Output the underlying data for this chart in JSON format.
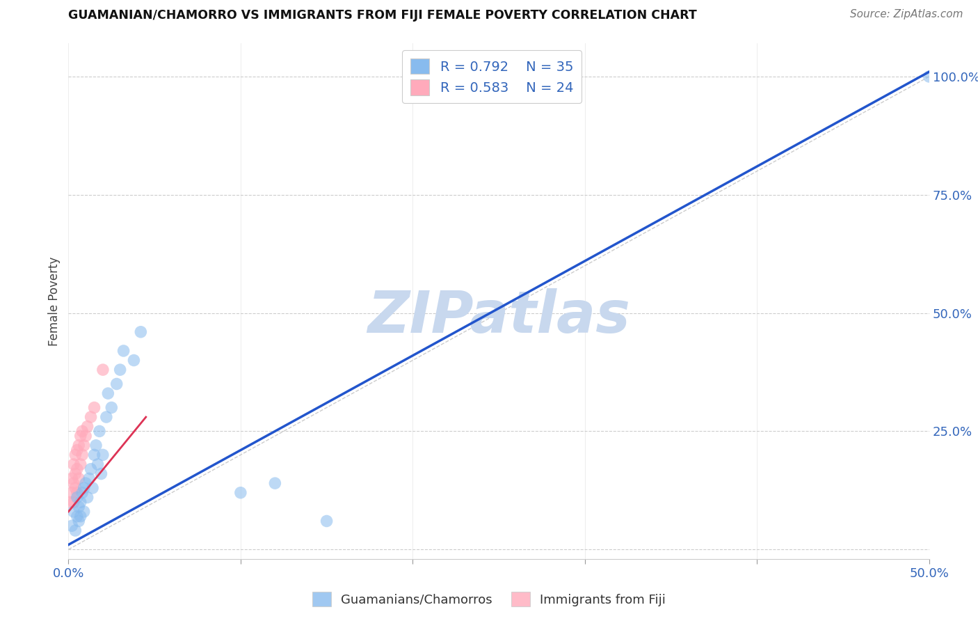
{
  "title": "GUAMANIAN/CHAMORRO VS IMMIGRANTS FROM FIJI FEMALE POVERTY CORRELATION CHART",
  "source": "Source: ZipAtlas.com",
  "ylabel_label": "Female Poverty",
  "xlim": [
    0.0,
    0.5
  ],
  "ylim": [
    -0.02,
    1.07
  ],
  "background_color": "#ffffff",
  "grid_color": "#cccccc",
  "blue_color": "#88bbee",
  "pink_color": "#ffaabb",
  "blue_line_color": "#2255cc",
  "pink_line_color": "#dd3355",
  "diagonal_color": "#cccccc",
  "legend_R1": "R = 0.792",
  "legend_N1": "N = 35",
  "legend_R2": "R = 0.583",
  "legend_N2": "N = 24",
  "watermark": "ZIPatlas",
  "watermark_color": "#c8d8ee",
  "blue_line_x0": 0.0,
  "blue_line_y0": 0.01,
  "blue_line_x1": 0.5,
  "blue_line_y1": 1.01,
  "pink_line_x0": 0.0,
  "pink_line_y0": 0.08,
  "pink_line_x1": 0.045,
  "pink_line_y1": 0.28,
  "blue_scatter_x": [
    0.002,
    0.003,
    0.004,
    0.005,
    0.005,
    0.006,
    0.006,
    0.007,
    0.007,
    0.008,
    0.009,
    0.009,
    0.01,
    0.011,
    0.012,
    0.013,
    0.014,
    0.015,
    0.016,
    0.017,
    0.018,
    0.019,
    0.02,
    0.022,
    0.023,
    0.025,
    0.028,
    0.03,
    0.032,
    0.038,
    0.042,
    0.1,
    0.12,
    0.15,
    0.5
  ],
  "blue_scatter_y": [
    0.05,
    0.08,
    0.04,
    0.07,
    0.11,
    0.09,
    0.06,
    0.1,
    0.07,
    0.12,
    0.08,
    0.13,
    0.14,
    0.11,
    0.15,
    0.17,
    0.13,
    0.2,
    0.22,
    0.18,
    0.25,
    0.16,
    0.2,
    0.28,
    0.33,
    0.3,
    0.35,
    0.38,
    0.42,
    0.4,
    0.46,
    0.12,
    0.14,
    0.06,
    1.0
  ],
  "pink_scatter_x": [
    0.001,
    0.002,
    0.002,
    0.003,
    0.003,
    0.003,
    0.004,
    0.004,
    0.004,
    0.005,
    0.005,
    0.005,
    0.006,
    0.006,
    0.007,
    0.007,
    0.008,
    0.008,
    0.009,
    0.01,
    0.011,
    0.013,
    0.015,
    0.02
  ],
  "pink_scatter_y": [
    0.1,
    0.12,
    0.15,
    0.1,
    0.14,
    0.18,
    0.13,
    0.16,
    0.2,
    0.12,
    0.17,
    0.21,
    0.15,
    0.22,
    0.18,
    0.24,
    0.2,
    0.25,
    0.22,
    0.24,
    0.26,
    0.28,
    0.3,
    0.38
  ],
  "xtick_positions": [
    0.0,
    0.1,
    0.2,
    0.3,
    0.4,
    0.5
  ],
  "xtick_labels": [
    "0.0%",
    "",
    "",
    "",
    "",
    "50.0%"
  ],
  "ytick_positions": [
    0.0,
    0.25,
    0.5,
    0.75,
    1.0
  ],
  "ytick_labels": [
    "",
    "25.0%",
    "50.0%",
    "75.0%",
    "100.0%"
  ]
}
